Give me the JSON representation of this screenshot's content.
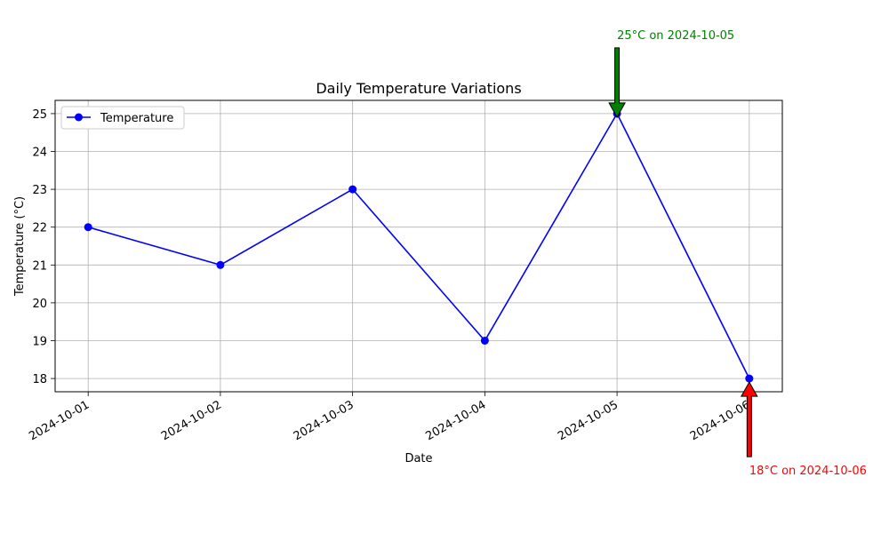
{
  "chart_data": {
    "type": "line",
    "title": "Daily Temperature Variations",
    "xlabel": "Date",
    "ylabel": "Temperature (°C)",
    "x": [
      "2024-10-01",
      "2024-10-02",
      "2024-10-03",
      "2024-10-04",
      "2024-10-05",
      "2024-10-06"
    ],
    "y_ticks": [
      18,
      19,
      20,
      21,
      22,
      23,
      24,
      25
    ],
    "ylim": [
      17.65,
      25.35
    ],
    "grid": true,
    "legend_position": "upper-left",
    "series": [
      {
        "name": "Temperature",
        "values": [
          22,
          21,
          23,
          19,
          25,
          18
        ],
        "color": "#0000ff",
        "marker": "circle"
      }
    ],
    "annotations": [
      {
        "text": "25°C on 2024-10-05",
        "x": "2024-10-05",
        "y": 25,
        "color": "#008000",
        "arrow_direction": "down"
      },
      {
        "text": "18°C on 2024-10-06",
        "x": "2024-10-06",
        "y": 18,
        "color": "#ff0000",
        "arrow_direction": "up"
      }
    ]
  }
}
